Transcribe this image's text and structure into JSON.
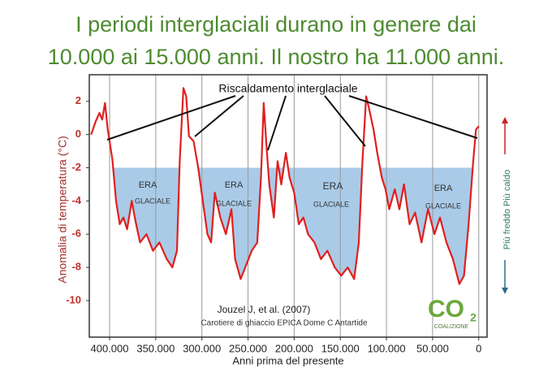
{
  "chart_data": {
    "type": "line",
    "title": [
      "I periodi interglaciali durano in genere dai",
      "10.000 ai 15.000 anni. Il nostro ha 11.000 anni."
    ],
    "ylabel": "Anomalia di temperatura (°C)",
    "xlabel": "Anni prima del presente",
    "color": "#e0201e",
    "fill_color": "#a9cbe8",
    "x": [
      420000,
      415000,
      411000,
      408000,
      405000,
      402000,
      397000,
      393000,
      389000,
      385000,
      381000,
      376000,
      372000,
      367000,
      360000,
      353000,
      346000,
      338000,
      332000,
      327000,
      324000,
      320000,
      317000,
      314000,
      309000,
      304000,
      299000,
      294000,
      290000,
      286000,
      280000,
      274000,
      268000,
      264000,
      258000,
      253000,
      246000,
      240000,
      236000,
      233000,
      230000,
      227000,
      222000,
      218000,
      214000,
      209000,
      205000,
      200000,
      195000,
      190000,
      185000,
      178000,
      171000,
      164000,
      156000,
      149000,
      142000,
      135000,
      130000,
      126000,
      122000,
      119000,
      114000,
      110000,
      105000,
      101000,
      97000,
      91000,
      86000,
      81000,
      75000,
      69000,
      62000,
      55000,
      48000,
      42000,
      35000,
      28000,
      21000,
      16000,
      11000,
      6000,
      3000,
      0
    ],
    "values": [
      0,
      0.8,
      1.3,
      0.9,
      1.9,
      0.3,
      -1.5,
      -4,
      -5.4,
      -5,
      -5.7,
      -4,
      -5.2,
      -6.5,
      -6,
      -7,
      -6.5,
      -7.5,
      -8,
      -7,
      -1.6,
      2.8,
      2.3,
      -0.1,
      -0.4,
      -2,
      -4,
      -6,
      -6.5,
      -3.5,
      -5,
      -6,
      -4.5,
      -7.5,
      -8.7,
      -8,
      -7,
      -6.5,
      -2.6,
      1.9,
      -0.7,
      -3,
      -5,
      -1.6,
      -3,
      -1.1,
      -2.6,
      -3.5,
      -5.4,
      -5,
      -6,
      -6.5,
      -7.5,
      -7,
      -8,
      -8.5,
      -8,
      -8.7,
      -6.5,
      -1.6,
      2.3,
      1.6,
      0.3,
      -1.1,
      -2.6,
      -3.3,
      -4.5,
      -3.3,
      -4.5,
      -3,
      -5.4,
      -4.7,
      -6.5,
      -4.5,
      -6,
      -5,
      -6.5,
      -7.5,
      -9,
      -8.5,
      -5.4,
      -1.6,
      0.3,
      0.5
    ],
    "fill_below": -2,
    "xlim": [
      422000,
      -9000
    ],
    "xticks": [
      {
        "value": 400000,
        "label": "400.000"
      },
      {
        "value": 350000,
        "label": "350.000"
      },
      {
        "value": 300000,
        "label": "300.000"
      },
      {
        "value": 250000,
        "label": "250.000"
      },
      {
        "value": 200000,
        "label": "200.000"
      },
      {
        "value": 150000,
        "label": "150.000"
      },
      {
        "value": 100000,
        "label": "100.000"
      },
      {
        "value": 50000,
        "label": "50.000"
      },
      0
    ],
    "ylim": [
      -12.2,
      3.6
    ],
    "yticks": [
      2,
      0,
      -2,
      -4,
      -6,
      -8,
      -10
    ],
    "grid": true,
    "annotation": "Riscaldamento interglaciale",
    "era_labels": [
      [
        "ERA",
        "GLACIALE"
      ],
      [
        "ERA",
        "GLACIALE"
      ],
      [
        "ERA",
        "GLACIALE"
      ],
      [
        "ERA",
        "GLACIALE"
      ]
    ],
    "source": [
      "Jouzel J, et al. (2007)",
      "Carotiere di ghiaccio EPICA Dome C Antartide"
    ],
    "side_label": "Più freddo Più caldo",
    "logo": {
      "text": "CO",
      "subscript": "2",
      "name": "COALIZIONE"
    }
  }
}
